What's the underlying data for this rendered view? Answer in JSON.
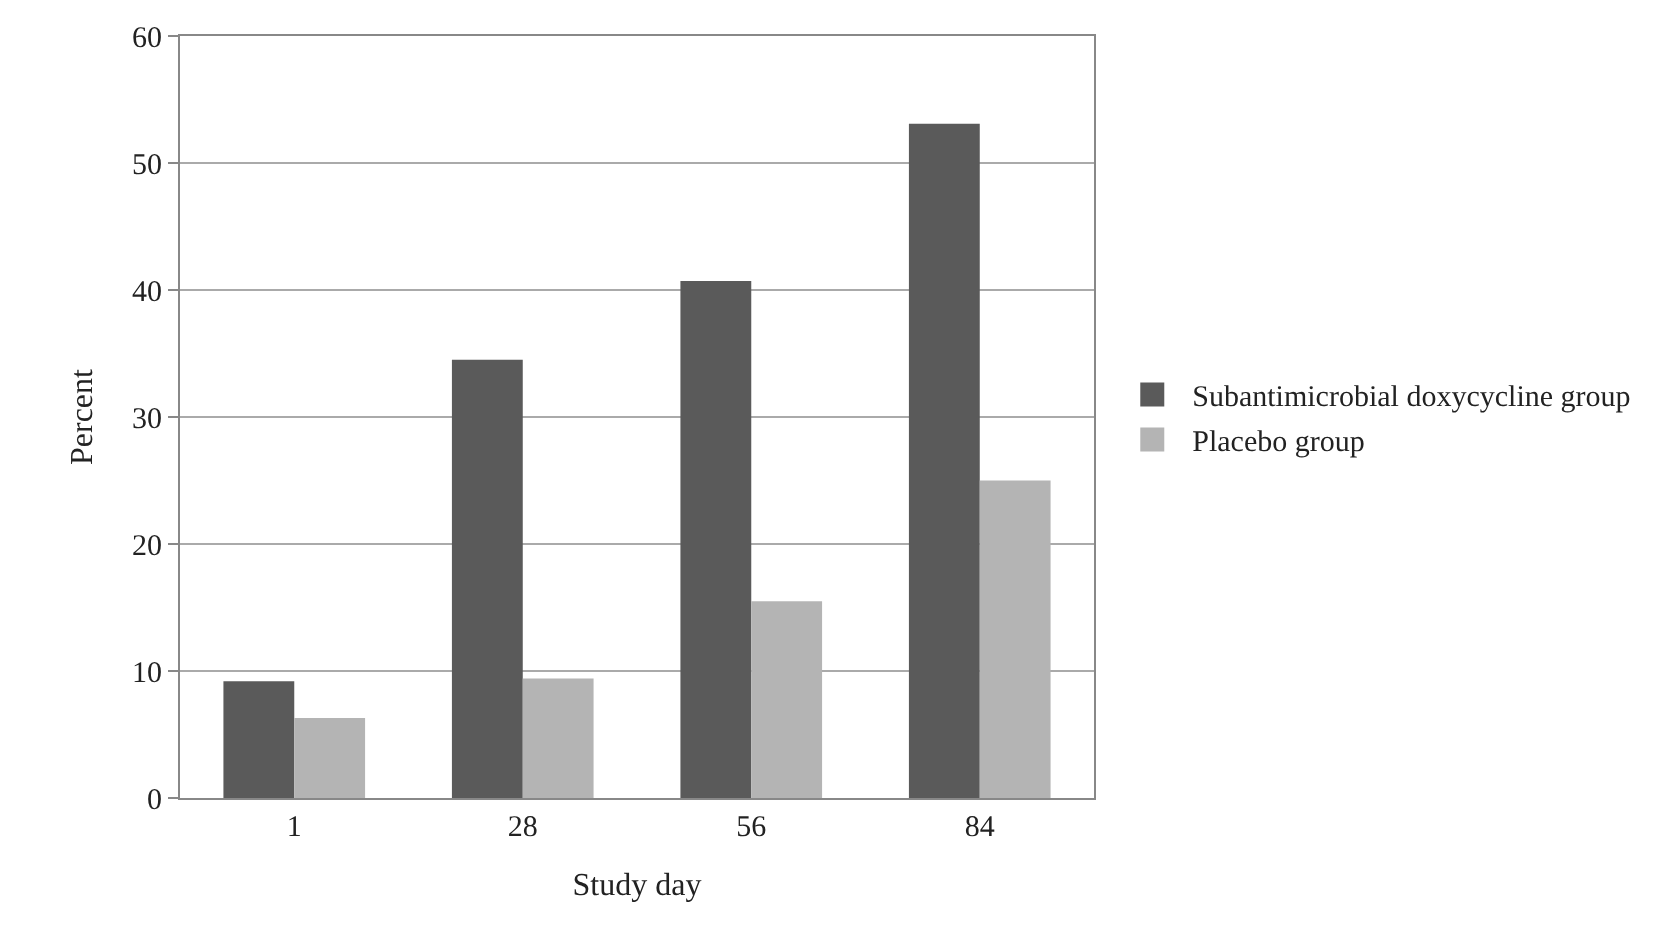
{
  "chart_data": {
    "type": "bar",
    "xlabel": "Study day",
    "ylabel": "Percent",
    "categories": [
      "1",
      "28",
      "56",
      "84"
    ],
    "series": [
      {
        "name": "Subantimicrobial doxycycline group",
        "color": "#5a5a5a",
        "values": [
          9.2,
          34.5,
          40.7,
          53.1
        ]
      },
      {
        "name": "Placebo group",
        "color": "#b4b4b4",
        "values": [
          6.3,
          9.4,
          15.5,
          25.0
        ]
      }
    ],
    "ylim": [
      0,
      60
    ],
    "yticks": [
      0,
      10,
      20,
      30,
      40,
      50,
      60
    ],
    "grid": "y",
    "legend": "right"
  }
}
